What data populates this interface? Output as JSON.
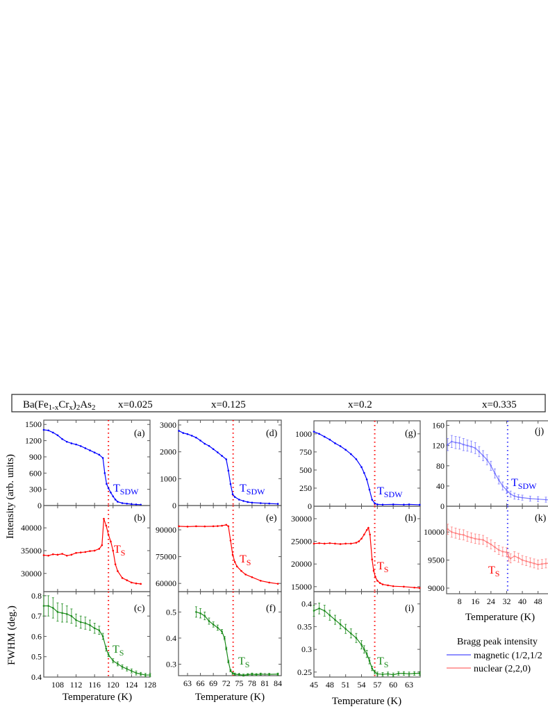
{
  "header": {
    "compound_main": "Ba(Fe",
    "compound_sub1": "1-x",
    "compound_mid": "Cr",
    "compound_sub2": "x",
    "compound_close": ")",
    "compound_sub3": "2",
    "compound_end": "As",
    "compound_sub4": "2",
    "columns": [
      "x=0.025",
      "x=0.125",
      "x=0.2",
      "x=0.335"
    ]
  },
  "axis_labels": {
    "intensity": "Intensity (arb. units)",
    "fwhm": "FWHM (deg.)",
    "temperature": "Temperature (K)"
  },
  "legend": {
    "title": "Bragg peak intensity",
    "items": [
      {
        "label": "magnetic (1/2,1/2",
        "color": "#4a4aff"
      },
      {
        "label": "nuclear (2,2,0)",
        "color": "#ff6b6b"
      }
    ]
  },
  "chart_data": [
    {
      "type": "line",
      "panel": "(a)",
      "color": "#0000ff",
      "xlim": [
        105,
        128
      ],
      "ylim": [
        0,
        1580
      ],
      "xticks": [
        108,
        112,
        116,
        120,
        124,
        128
      ],
      "yticks": [
        0,
        300,
        600,
        900,
        1200,
        1500
      ],
      "show_xticklabels": false,
      "transition_T": 119,
      "transition_color": "#ff0000",
      "label_main": "T",
      "label_sub": "SDW",
      "x": [
        105,
        106,
        107,
        108,
        109,
        110,
        111,
        112,
        113,
        114,
        115,
        116,
        117,
        117.8,
        118.2,
        118.6,
        119,
        119.5,
        120,
        120.5,
        121,
        122,
        123,
        124,
        125,
        126
      ],
      "y": [
        1400,
        1390,
        1350,
        1300,
        1230,
        1180,
        1150,
        1130,
        1100,
        1060,
        1020,
        980,
        940,
        880,
        600,
        400,
        320,
        240,
        170,
        110,
        70,
        45,
        35,
        25,
        20,
        15
      ]
    },
    {
      "type": "line",
      "panel": "(b)",
      "color": "#ff0000",
      "xlim": [
        105,
        128
      ],
      "ylim": [
        26000,
        44900
      ],
      "xticks": [
        108,
        112,
        116,
        120,
        124,
        128
      ],
      "yticks": [
        30000,
        35000,
        40000
      ],
      "show_xticklabels": false,
      "transition_T": 119,
      "transition_color": "#ff0000",
      "label_main": "T",
      "label_sub": "S",
      "x": [
        105,
        106,
        107,
        108,
        109,
        110,
        111,
        112,
        113,
        114,
        115,
        116,
        117,
        117.6,
        118,
        118.5,
        119,
        119.5,
        120,
        120.5,
        121,
        122,
        123,
        124,
        125,
        126
      ],
      "y": [
        34000,
        33900,
        34200,
        34100,
        34300,
        33900,
        34100,
        34500,
        34600,
        34700,
        34900,
        35000,
        35400,
        36200,
        42000,
        40500,
        38500,
        37000,
        35000,
        32000,
        30500,
        29000,
        28500,
        28000,
        27800,
        27700
      ]
    },
    {
      "type": "line",
      "panel": "(c)",
      "color": "#1a8a1a",
      "xlim": [
        105,
        128
      ],
      "ylim": [
        0.4,
        0.82
      ],
      "xticks": [
        108,
        112,
        116,
        120,
        124,
        128
      ],
      "yticks": [
        0.4,
        0.5,
        0.6,
        0.7,
        0.8
      ],
      "show_xticklabels": true,
      "transition_T": 119,
      "transition_color": "#ff0000",
      "label_main": "T",
      "label_sub": "S",
      "x": [
        105,
        106,
        107,
        108,
        109,
        110,
        111,
        112,
        113,
        114,
        115,
        116,
        117,
        117.8,
        118.5,
        119,
        120,
        121,
        122,
        123,
        124,
        125,
        126,
        127,
        128
      ],
      "y": [
        0.75,
        0.75,
        0.74,
        0.72,
        0.715,
        0.71,
        0.7,
        0.68,
        0.67,
        0.665,
        0.655,
        0.64,
        0.63,
        0.6,
        0.54,
        0.51,
        0.48,
        0.465,
        0.45,
        0.44,
        0.43,
        0.42,
        0.415,
        0.41,
        0.41
      ],
      "err": [
        0.05,
        0.05,
        0.05,
        0.045,
        0.045,
        0.04,
        0.035,
        0.03,
        0.03,
        0.03,
        0.025,
        0.025,
        0.02,
        0.015,
        0.012,
        0.01,
        0.01,
        0.01,
        0.01,
        0.01,
        0.01,
        0.01,
        0.008,
        0.008,
        0.008
      ]
    },
    {
      "type": "line",
      "panel": "(d)",
      "color": "#0000ff",
      "xlim": [
        60.9,
        84.8
      ],
      "ylim": [
        0,
        3180
      ],
      "xticks": [
        63,
        66,
        69,
        72,
        75,
        78,
        81,
        84
      ],
      "yticks": [
        0,
        1000,
        2000,
        3000
      ],
      "show_xticklabels": false,
      "transition_T": 73.6,
      "transition_color": "#ff0000",
      "label_main": "T",
      "label_sub": "SDW",
      "x": [
        61,
        62,
        63,
        64,
        65,
        66,
        67,
        68,
        69,
        70,
        71,
        72,
        72.5,
        73,
        73.5,
        74,
        75,
        76,
        77,
        78,
        80,
        82,
        84
      ],
      "y": [
        2780,
        2700,
        2660,
        2600,
        2530,
        2420,
        2300,
        2220,
        2100,
        1980,
        1850,
        1720,
        1300,
        800,
        420,
        320,
        220,
        170,
        130,
        110,
        90,
        75,
        60
      ]
    },
    {
      "type": "line",
      "panel": "(e)",
      "color": "#ff0000",
      "xlim": [
        60.9,
        84.8
      ],
      "ylim": [
        55400,
        103600
      ],
      "xticks": [
        63,
        66,
        69,
        72,
        75,
        78,
        81,
        84
      ],
      "yticks": [
        60000,
        75000,
        90000
      ],
      "show_xticklabels": false,
      "transition_T": 73.6,
      "transition_color": "#ff0000",
      "label_main": "T",
      "label_sub": "S",
      "x": [
        61,
        63,
        65,
        67,
        69,
        70,
        71,
        72,
        72.5,
        73,
        73.5,
        74,
        74.5,
        75.5,
        76.5,
        78,
        80,
        82,
        84
      ],
      "y": [
        92000,
        91800,
        92000,
        91900,
        92000,
        92100,
        92300,
        92800,
        92000,
        84000,
        76000,
        72000,
        69500,
        67000,
        65000,
        63500,
        61500,
        60500,
        59800
      ]
    },
    {
      "type": "line",
      "panel": "(f)",
      "color": "#1a8a1a",
      "xlim": [
        60.9,
        84.8
      ],
      "ylim": [
        0.256,
        0.578
      ],
      "xticks": [
        63,
        66,
        69,
        72,
        75,
        78,
        81,
        84
      ],
      "yticks": [
        0.3,
        0.4,
        0.5
      ],
      "show_xticklabels": true,
      "transition_T": 73.6,
      "transition_color": "#ff0000",
      "label_main": "T",
      "label_sub": "S",
      "x": [
        65,
        66,
        67,
        68,
        69,
        70,
        71,
        71.6,
        72,
        72.5,
        73,
        73.5,
        74,
        75,
        76,
        77,
        78,
        79,
        80,
        82,
        84
      ],
      "y": [
        0.5,
        0.495,
        0.485,
        0.465,
        0.452,
        0.44,
        0.425,
        0.4,
        0.36,
        0.31,
        0.275,
        0.265,
        0.262,
        0.26,
        0.258,
        0.26,
        0.262,
        0.26,
        0.262,
        0.261,
        0.262
      ],
      "err": [
        0.02,
        0.018,
        0.015,
        0.012,
        0.01,
        0.01,
        0.008,
        0.006,
        0.005,
        0.005,
        0.004,
        0.004,
        0.004,
        0.004,
        0.004,
        0.004,
        0.004,
        0.004,
        0.004,
        0.004,
        0.004
      ]
    },
    {
      "type": "line",
      "panel": "(g)",
      "color": "#0000ff",
      "xlim": [
        45,
        65.1
      ],
      "ylim": [
        0,
        1180
      ],
      "xticks": [
        45,
        48,
        51,
        54,
        57,
        60,
        63
      ],
      "yticks": [
        0,
        250,
        500,
        750,
        1000
      ],
      "show_xticklabels": false,
      "transition_T": 56.5,
      "transition_color": "#ff0000",
      "label_main": "T",
      "label_sub": "SDW",
      "x": [
        45,
        46,
        47,
        48,
        49,
        50,
        51,
        52,
        53,
        54,
        54.5,
        55,
        55.5,
        56,
        56.5,
        57,
        58,
        60,
        62,
        63,
        65
      ],
      "y": [
        1030,
        1000,
        960,
        920,
        870,
        830,
        780,
        720,
        650,
        540,
        460,
        370,
        230,
        90,
        40,
        25,
        22,
        25,
        22,
        25,
        20
      ]
    },
    {
      "type": "line",
      "panel": "(h)",
      "color": "#ff0000",
      "xlim": [
        45,
        65.1
      ],
      "ylim": [
        13900,
        32750
      ],
      "xticks": [
        45,
        48,
        51,
        54,
        57,
        60,
        63
      ],
      "yticks": [
        15000,
        20000,
        25000,
        30000
      ],
      "show_xticklabels": false,
      "transition_T": 56.5,
      "transition_color": "#ff0000",
      "label_main": "T",
      "label_sub": "S",
      "x": [
        45,
        46,
        47,
        48,
        49,
        50,
        51,
        52,
        53,
        53.5,
        54,
        54.5,
        55,
        55.3,
        55.6,
        56,
        56.3,
        56.6,
        57,
        57.5,
        58,
        59,
        60,
        62,
        64,
        65
      ],
      "y": [
        24500,
        24600,
        24500,
        24600,
        24500,
        24400,
        24500,
        24500,
        24700,
        25000,
        25600,
        26500,
        27500,
        28000,
        26500,
        21000,
        18500,
        17200,
        16300,
        15800,
        15500,
        15300,
        15100,
        15000,
        14800,
        14700
      ]
    },
    {
      "type": "line",
      "panel": "(i)",
      "color": "#1a8a1a",
      "xlim": [
        45,
        65.1
      ],
      "ylim": [
        0.239,
        0.427
      ],
      "xticks": [
        45,
        48,
        51,
        54,
        57,
        60,
        63
      ],
      "yticks": [
        0.25,
        0.3,
        0.35,
        0.4
      ],
      "show_xticklabels": true,
      "transition_T": 56.5,
      "transition_color": "#ff0000",
      "label_main": "T",
      "label_sub": "S",
      "x": [
        45,
        46,
        47,
        48,
        49,
        50,
        51,
        52,
        53,
        54,
        54.5,
        55,
        55.5,
        56,
        56.5,
        57,
        58,
        59,
        60,
        61,
        62,
        63,
        64,
        65
      ],
      "y": [
        0.385,
        0.39,
        0.385,
        0.375,
        0.365,
        0.355,
        0.345,
        0.335,
        0.325,
        0.31,
        0.3,
        0.29,
        0.275,
        0.258,
        0.25,
        0.246,
        0.245,
        0.246,
        0.244,
        0.247,
        0.247,
        0.246,
        0.247,
        0.247
      ],
      "err": [
        0.012,
        0.012,
        0.012,
        0.011,
        0.01,
        0.01,
        0.01,
        0.01,
        0.01,
        0.009,
        0.008,
        0.008,
        0.007,
        0.005,
        0.004,
        0.004,
        0.004,
        0.004,
        0.004,
        0.004,
        0.004,
        0.004,
        0.004,
        0.004
      ]
    },
    {
      "type": "line",
      "panel": "(j)",
      "color": "#7a7aff",
      "xlim": [
        1.4,
        55.2
      ],
      "ylim": [
        0,
        169
      ],
      "xticks": [
        8,
        16,
        24,
        32,
        40,
        48,
        56
      ],
      "yticks": [
        0,
        40,
        80,
        120,
        160
      ],
      "show_xticklabels": false,
      "transition_T": 32.5,
      "transition_color": "#3030ff",
      "label_main": "T",
      "label_sub": "SDW",
      "x": [
        2,
        4,
        6,
        8,
        10,
        12,
        14,
        16,
        18,
        20,
        22,
        24,
        26,
        28,
        30,
        32,
        34,
        36,
        38,
        40,
        44,
        48,
        52,
        55
      ],
      "y": [
        122,
        128,
        126,
        125,
        122,
        120,
        118,
        115,
        108,
        100,
        92,
        80,
        65,
        52,
        40,
        32,
        24,
        20,
        18,
        17,
        15,
        14,
        13,
        12
      ],
      "err": [
        12,
        12,
        12,
        12,
        12,
        11,
        11,
        11,
        10,
        10,
        10,
        9,
        9,
        8,
        8,
        7,
        6,
        6,
        5,
        5,
        5,
        5,
        5,
        5
      ]
    },
    {
      "type": "line",
      "panel": "(k)",
      "color": "#ff8080",
      "xlim": [
        1.4,
        55.2
      ],
      "ylim": [
        8900,
        10460
      ],
      "xticks": [
        8,
        16,
        24,
        32,
        40,
        48,
        56
      ],
      "yticks": [
        9000,
        9500,
        10000
      ],
      "show_xticklabels": true,
      "transition_T": 32.5,
      "transition_color": "#3030ff",
      "label_main": "T",
      "label_sub": "S",
      "x": [
        2,
        4,
        6,
        8,
        10,
        12,
        14,
        16,
        18,
        20,
        22,
        24,
        26,
        28,
        30,
        32,
        33,
        34,
        36,
        38,
        40,
        42,
        44,
        46,
        48,
        50,
        52,
        55
      ],
      "y": [
        10050,
        10000,
        9980,
        9960,
        9950,
        9920,
        9900,
        9880,
        9870,
        9860,
        9820,
        9780,
        9730,
        9680,
        9650,
        9640,
        9560,
        9530,
        9570,
        9540,
        9500,
        9480,
        9460,
        9440,
        9420,
        9430,
        9440,
        9450
      ],
      "err": [
        90,
        90,
        90,
        90,
        90,
        85,
        85,
        85,
        85,
        80,
        80,
        80,
        80,
        80,
        80,
        80,
        80,
        80,
        80,
        80,
        80,
        80,
        80,
        80,
        80,
        80,
        80,
        80
      ]
    }
  ]
}
